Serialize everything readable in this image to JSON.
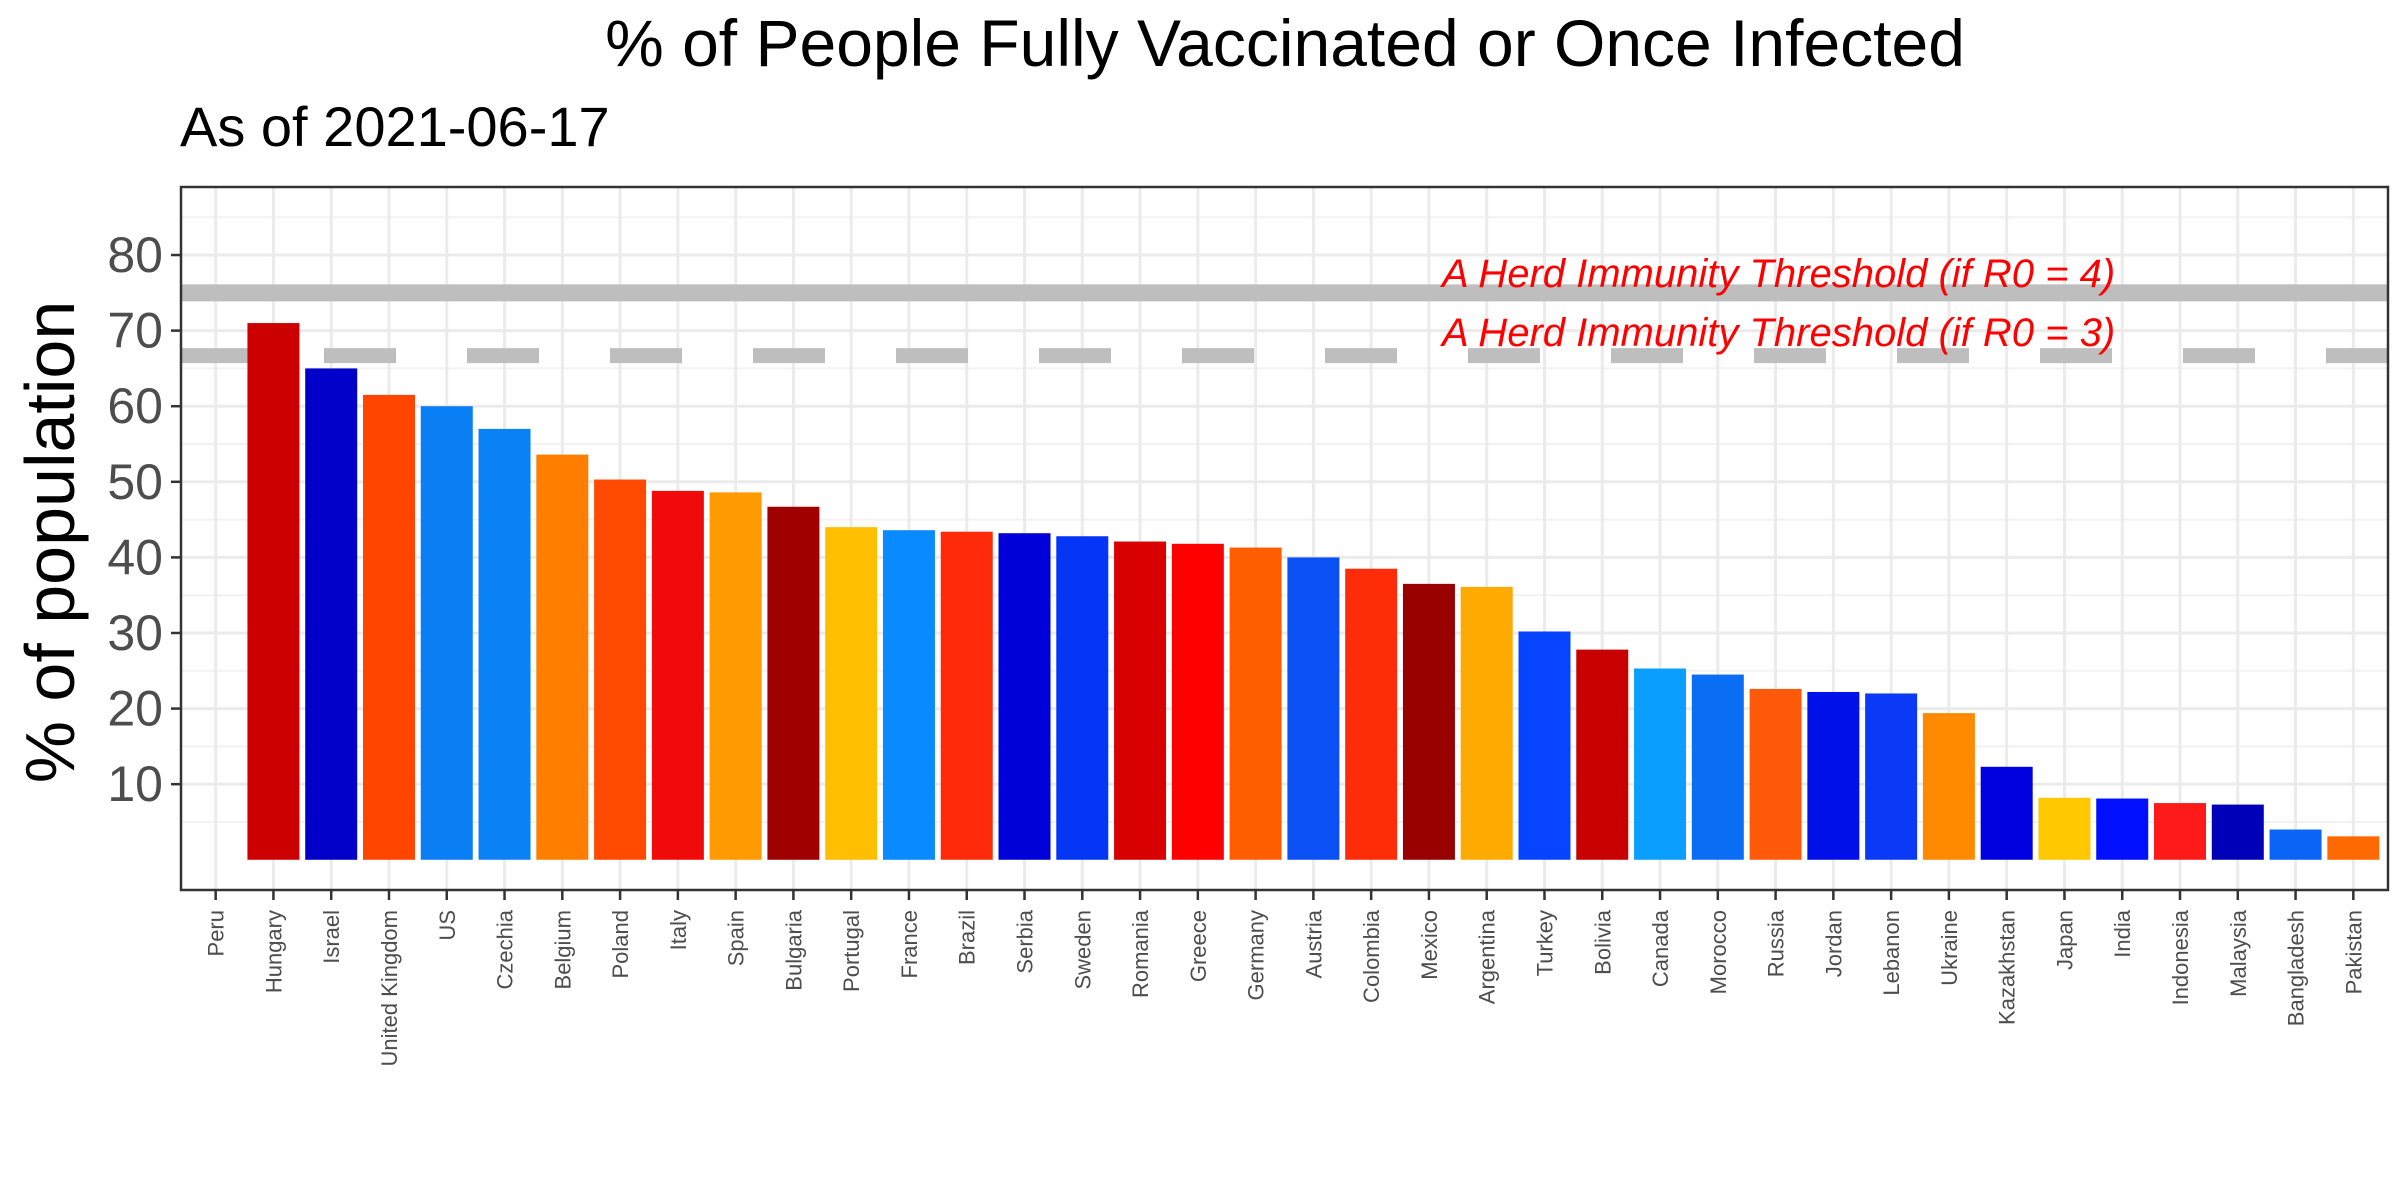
{
  "chart_data": {
    "type": "bar",
    "title": "% of People Fully Vaccinated or Once Infected",
    "subtitle": "As of 2021-06-17",
    "xlabel": "",
    "ylabel": "% of population",
    "ylim": [
      -4,
      89
    ],
    "yticks": [
      10,
      20,
      30,
      40,
      50,
      60,
      70,
      80
    ],
    "grid": true,
    "legend": "none",
    "categories": [
      "Peru",
      "Hungary",
      "Israel",
      "United Kingdom",
      "US",
      "Czechia",
      "Belgium",
      "Poland",
      "Italy",
      "Spain",
      "Bulgaria",
      "Portugal",
      "France",
      "Brazil",
      "Serbia",
      "Sweden",
      "Romania",
      "Greece",
      "Germany",
      "Austria",
      "Colombia",
      "Mexico",
      "Argentina",
      "Turkey",
      "Bolivia",
      "Canada",
      "Morocco",
      "Russia",
      "Jordan",
      "Lebanon",
      "Ukraine",
      "Kazakhstan",
      "Japan",
      "India",
      "Indonesia",
      "Malaysia",
      "Bangladesh",
      "Pakistan"
    ],
    "values": [
      null,
      71,
      65,
      61.5,
      60,
      57,
      53.6,
      50.3,
      48.8,
      48.6,
      46.7,
      44,
      43.6,
      43.4,
      43.2,
      42.8,
      42.1,
      41.8,
      41.3,
      40,
      38.5,
      36.5,
      36.1,
      30.2,
      27.8,
      25.3,
      24.5,
      22.6,
      22.2,
      22,
      19.4,
      12.3,
      8.2,
      8.1,
      7.5,
      7.3,
      4,
      3.1
    ],
    "colors": [
      "#ffffff",
      "#cc0000",
      "#0000c8",
      "#ff4500",
      "#0a7ef5",
      "#0a82f5",
      "#ff7e00",
      "#ff4a00",
      "#f00a0a",
      "#ff9a00",
      "#a00000",
      "#ffbe00",
      "#0a8aff",
      "#ff2a0a",
      "#0000d8",
      "#0636f5",
      "#d80000",
      "#ff0000",
      "#ff5e00",
      "#0a50f5",
      "#ff2c0a",
      "#990000",
      "#ffaa00",
      "#0644ff",
      "#c80000",
      "#0a9eff",
      "#0a6ef5",
      "#ff5a0a",
      "#0010e8",
      "#0a3af5",
      "#ff8a00",
      "#0000e0",
      "#ffc800",
      "#0010ff",
      "#ff1a1a",
      "#0000b8",
      "#0a64f5",
      "#ff6a00"
    ],
    "reference_lines": [
      {
        "label": "A Herd Immunity Threshold (if R0 = 4)",
        "y": 75,
        "style": "solid",
        "color": "#bebebe",
        "text_color": "#ff0000"
      },
      {
        "label": "A Herd Immunity Threshold (if R0 = 3)",
        "y": 66.7,
        "style": "dashed",
        "color": "#bebebe",
        "text_color": "#ff0000"
      }
    ]
  }
}
